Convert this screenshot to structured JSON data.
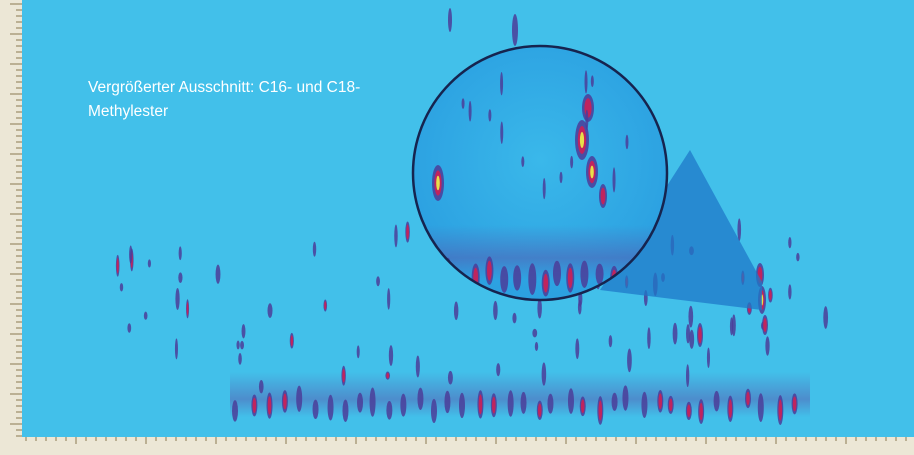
{
  "caption": {
    "text": "Vergrößerter Ausschnitt: C16- und C18-Methylester"
  }
}
